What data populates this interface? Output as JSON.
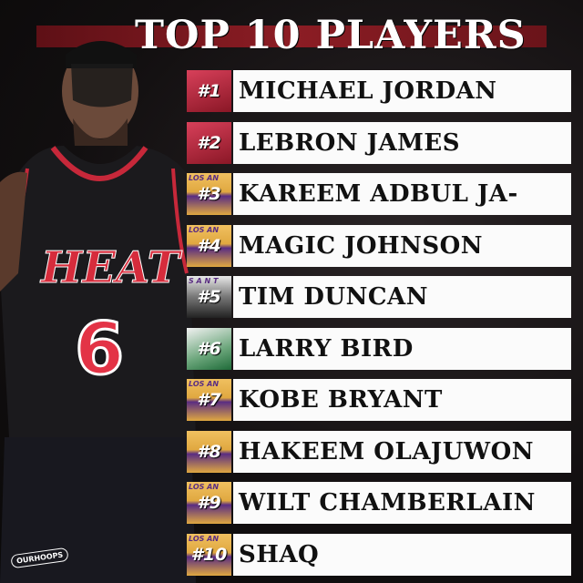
{
  "title": "TOP 10 PLAYERS",
  "player_image": {
    "jersey_team": "HEAT",
    "jersey_number": "6"
  },
  "watermark": "OURHOOPS",
  "team_colors": {
    "heat": "#b0263a",
    "lakers": "#e8b04a",
    "spurs": "#c4c4c4",
    "celtics": "#2e7d46"
  },
  "rankings": [
    {
      "rank": "#1",
      "name": "MICHAEL JORDAN",
      "team": "heat"
    },
    {
      "rank": "#2",
      "name": "LEBRON JAMES",
      "team": "heat"
    },
    {
      "rank": "#3",
      "name": "KAREEM ADBUL JA-",
      "team": "lakers",
      "team_text": "LOS AN"
    },
    {
      "rank": "#4",
      "name": "MAGIC JOHNSON",
      "team": "lakers",
      "team_text": "LOS AN"
    },
    {
      "rank": "#5",
      "name": "TIM DUNCAN",
      "team": "spurs",
      "team_text": "S A N T"
    },
    {
      "rank": "#6",
      "name": "LARRY BIRD",
      "team": "celtics"
    },
    {
      "rank": "#7",
      "name": "KOBE BRYANT",
      "team": "lakers",
      "team_text": "LOS AN"
    },
    {
      "rank": "#8",
      "name": "HAKEEM OLAJUWON",
      "team": "lakers"
    },
    {
      "rank": "#9",
      "name": "WILT CHAMBERLAIN",
      "team": "lakers",
      "team_text": "LOS AN"
    },
    {
      "rank": "#10",
      "name": "SHAQ",
      "team": "lakers",
      "team_text": "LOS AN"
    }
  ]
}
